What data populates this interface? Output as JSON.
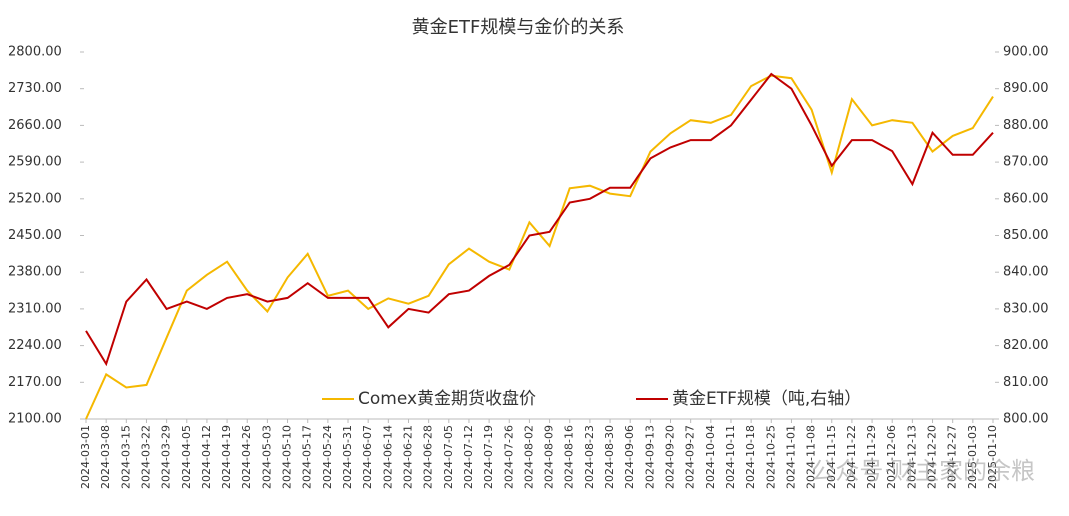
{
  "chart_data": {
    "type": "line",
    "title": "黄金ETF规模与金价的关系",
    "categories": [
      "2024-03-01",
      "2024-03-08",
      "2024-03-15",
      "2024-03-22",
      "2024-03-29",
      "2024-04-05",
      "2024-04-12",
      "2024-04-19",
      "2024-04-26",
      "2024-05-03",
      "2024-05-10",
      "2024-05-17",
      "2024-05-24",
      "2024-05-31",
      "2024-06-07",
      "2024-06-14",
      "2024-06-21",
      "2024-06-28",
      "2024-07-05",
      "2024-07-12",
      "2024-07-19",
      "2024-07-26",
      "2024-08-02",
      "2024-08-09",
      "2024-08-16",
      "2024-08-23",
      "2024-08-30",
      "2024-09-06",
      "2024-09-13",
      "2024-09-20",
      "2024-09-27",
      "2024-10-04",
      "2024-10-11",
      "2024-10-18",
      "2024-10-25",
      "2024-11-01",
      "2024-11-08",
      "2024-11-15",
      "2024-11-22",
      "2024-11-29",
      "2024-12-06",
      "2024-12-13",
      "2024-12-20",
      "2024-12-27",
      "2025-01-03",
      "2025-01-10"
    ],
    "series": [
      {
        "name": "Comex黄金期货收盘价",
        "color": "#f5b800",
        "axis": "y",
        "values": [
          2100,
          2185,
          2160,
          2165,
          2255,
          2345,
          2375,
          2400,
          2345,
          2305,
          2370,
          2415,
          2335,
          2345,
          2310,
          2330,
          2320,
          2335,
          2395,
          2425,
          2400,
          2385,
          2475,
          2430,
          2540,
          2545,
          2530,
          2525,
          2610,
          2645,
          2670,
          2665,
          2680,
          2735,
          2755,
          2750,
          2690,
          2570,
          2710,
          2660,
          2670,
          2665,
          2610,
          2640,
          2655,
          2715
        ]
      },
      {
        "name": "黄金ETF规模（吨,右轴）",
        "color": "#c00000",
        "axis": "y2",
        "values": [
          824,
          815,
          832,
          838,
          830,
          832,
          830,
          833,
          834,
          832,
          833,
          837,
          833,
          833,
          833,
          825,
          830,
          829,
          834,
          835,
          839,
          842,
          850,
          851,
          859,
          860,
          863,
          863,
          871,
          874,
          876,
          876,
          880,
          887,
          894,
          890,
          880,
          869,
          876,
          876,
          873,
          864,
          878,
          872,
          872,
          878
        ]
      }
    ],
    "ylim": [
      2100,
      2800
    ],
    "yticks": [
      {
        "value": 2100,
        "label": "2100.00"
      },
      {
        "value": 2170,
        "label": "2170.00"
      },
      {
        "value": 2240,
        "label": "2240.00"
      },
      {
        "value": 2310,
        "label": "2310.00"
      },
      {
        "value": 2380,
        "label": "2380.00"
      },
      {
        "value": 2450,
        "label": "2450.00"
      },
      {
        "value": 2520,
        "label": "2520.00"
      },
      {
        "value": 2590,
        "label": "2590.00"
      },
      {
        "value": 2660,
        "label": "2660.00"
      },
      {
        "value": 2730,
        "label": "2730.00"
      },
      {
        "value": 2800,
        "label": "2800.00"
      }
    ],
    "y2lim": [
      800,
      900
    ],
    "y2ticks": [
      {
        "value": 800,
        "label": "800.00"
      },
      {
        "value": 810,
        "label": "810.00"
      },
      {
        "value": 820,
        "label": "820.00"
      },
      {
        "value": 830,
        "label": "830.00"
      },
      {
        "value": 840,
        "label": "840.00"
      },
      {
        "value": 850,
        "label": "850.00"
      },
      {
        "value": 860,
        "label": "860.00"
      },
      {
        "value": 870,
        "label": "870.00"
      },
      {
        "value": 880,
        "label": "880.00"
      },
      {
        "value": 890,
        "label": "890.00"
      },
      {
        "value": 900,
        "label": "900.00"
      }
    ],
    "grid": false,
    "legend": "bottom",
    "watermark": "公众号·财主家的余粮"
  }
}
